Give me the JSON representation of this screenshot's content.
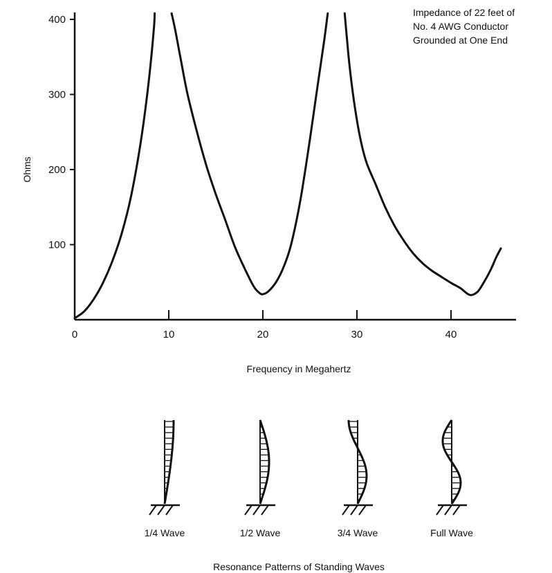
{
  "chart_data": {
    "type": "line",
    "xlabel": "Frequency in Megahertz",
    "ylabel": "Ohms",
    "xlim": [
      0,
      47
    ],
    "ylim": [
      0,
      400
    ],
    "xticks": [
      "0",
      "10",
      "20",
      "30",
      "40"
    ],
    "yticks": [
      "100",
      "200",
      "300",
      "400"
    ],
    "annotation": [
      "Impedance of 22 feet of",
      "No. 4 AWG Conductor",
      "Grounded at One End"
    ],
    "grid": false,
    "series": [
      {
        "name": "",
        "segments": [
          {
            "x": [
              0,
              1,
              2,
              3,
              4,
              5,
              6,
              7,
              7.8,
              8.4,
              8.5
            ],
            "y": [
              2,
              11,
              27,
              49,
              78,
              115,
              165,
              235,
              310,
              385,
              408
            ]
          },
          {
            "x": [
              10.3,
              10.7,
              11.3,
              12,
              13,
              14,
              15,
              16,
              17,
              18,
              19,
              19.6,
              20,
              20.6,
              21.4,
              22.2,
              23,
              24,
              25,
              25.8,
              26.5,
              26.9
            ],
            "y": [
              408,
              385,
              345,
              300,
              250,
              205,
              167,
              133,
              98,
              70,
              45,
              36,
              34,
              38,
              50,
              70,
              100,
              160,
              240,
              310,
              370,
              408
            ]
          },
          {
            "x": [
              28.7,
              28.9,
              29.2,
              29.7,
              30.3,
              31,
              32,
              33,
              34,
              35,
              36,
              37,
              38,
              39,
              40,
              41,
              42,
              42.8,
              43.5,
              44.2,
              44.8,
              45.3
            ],
            "y": [
              408,
              380,
              340,
              290,
              245,
              210,
              180,
              150,
              125,
              105,
              88,
              75,
              65,
              57,
              49,
              42,
              33,
              37,
              50,
              66,
              83,
              95
            ]
          }
        ]
      }
    ]
  },
  "resonance_patterns": {
    "caption": "Resonance Patterns of Standing Waves",
    "items": [
      {
        "label": "1/4 Wave",
        "half_loops": 1
      },
      {
        "label": "1/2 Wave",
        "half_loops": 2
      },
      {
        "label": "3/4 Wave",
        "half_loops": 3
      },
      {
        "label": "Full Wave",
        "half_loops": 4
      }
    ]
  }
}
